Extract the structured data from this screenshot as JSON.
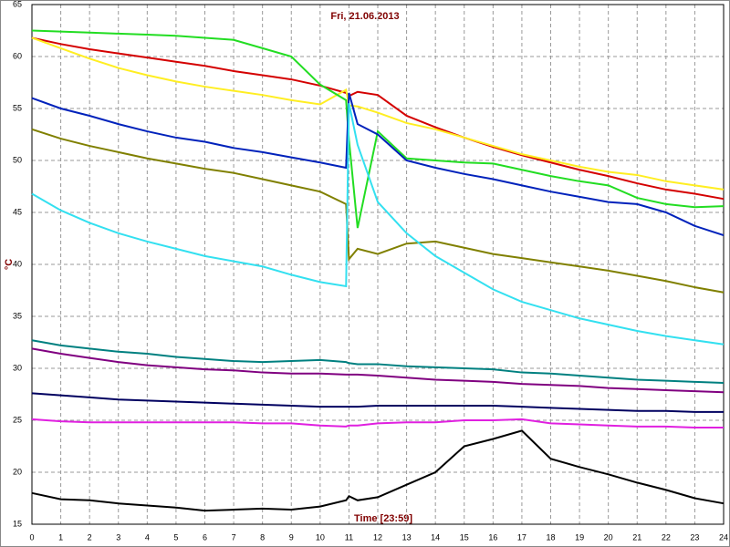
{
  "chart_data": {
    "type": "line",
    "title": "Fri, 21.06.2013",
    "y_label": "°C",
    "x_label": "Time [23:59]",
    "x": [
      0,
      1,
      2,
      3,
      4,
      5,
      6,
      7,
      8,
      9,
      10,
      10.9,
      11,
      11.3,
      12,
      13,
      14,
      15,
      16,
      17,
      18,
      19,
      20,
      21,
      22,
      23,
      24
    ],
    "xlim": [
      0,
      24
    ],
    "xticks": [
      0,
      1,
      2,
      3,
      4,
      5,
      6,
      7,
      8,
      9,
      10,
      11,
      12,
      13,
      14,
      15,
      16,
      17,
      18,
      19,
      20,
      21,
      22,
      23,
      24
    ],
    "ylim": [
      15,
      65
    ],
    "yticks": [
      15,
      20,
      25,
      30,
      35,
      40,
      45,
      50,
      55,
      60,
      65
    ],
    "grid": true,
    "series": [
      {
        "color": "#d40000",
        "values": [
          61.8,
          61.2,
          60.7,
          60.3,
          59.9,
          59.5,
          59.1,
          58.6,
          58.2,
          57.8,
          57.2,
          56.5,
          56.2,
          56.6,
          56.3,
          54.3,
          53.2,
          52.2,
          51.3,
          50.5,
          49.8,
          49.1,
          48.5,
          47.8,
          47.2,
          46.8,
          46.3
        ]
      },
      {
        "color": "#ffee22",
        "values": [
          61.8,
          60.8,
          59.8,
          58.9,
          58.2,
          57.6,
          57.1,
          56.7,
          56.3,
          55.8,
          55.4,
          56.8,
          55.3,
          55.2,
          54.6,
          53.6,
          53,
          52.2,
          51.4,
          50.6,
          50,
          49.4,
          48.9,
          48.6,
          48,
          47.6,
          47.2
        ]
      },
      {
        "color": "#22dd22",
        "values": [
          62.5,
          62.4,
          62.3,
          62.2,
          62.1,
          62,
          61.8,
          61.6,
          60.8,
          60,
          57.3,
          55.8,
          52,
          43.5,
          52.8,
          50.2,
          50,
          49.8,
          49.7,
          49.1,
          48.5,
          48,
          47.6,
          46.4,
          45.8,
          45.5,
          45.6
        ]
      },
      {
        "color": "#0022bb",
        "values": [
          56,
          55,
          54.3,
          53.5,
          52.8,
          52.2,
          51.8,
          51.2,
          50.8,
          50.3,
          49.8,
          49.3,
          56.5,
          53.5,
          52.5,
          50,
          49.3,
          48.7,
          48.2,
          47.6,
          47,
          46.5,
          46,
          45.8,
          45,
          43.7,
          42.8
        ]
      },
      {
        "color": "#808000",
        "values": [
          53,
          52.1,
          51.4,
          50.8,
          50.2,
          49.7,
          49.2,
          48.8,
          48.2,
          47.6,
          47,
          45.8,
          40.5,
          41.5,
          41,
          42,
          42.2,
          41.6,
          41,
          40.6,
          40.2,
          39.8,
          39.4,
          38.9,
          38.4,
          37.8,
          37.3
        ]
      },
      {
        "color": "#33e0f0",
        "values": [
          46.8,
          45.2,
          44,
          43,
          42.2,
          41.5,
          40.8,
          40.3,
          39.8,
          39,
          38.3,
          37.9,
          55.5,
          51.5,
          46,
          43,
          40.8,
          39.2,
          37.6,
          36.4,
          35.6,
          34.8,
          34.2,
          33.6,
          33.1,
          32.7,
          32.3
        ]
      },
      {
        "color": "#008080",
        "values": [
          32.7,
          32.2,
          31.9,
          31.6,
          31.4,
          31.1,
          30.9,
          30.7,
          30.6,
          30.7,
          30.8,
          30.6,
          30.5,
          30.4,
          30.4,
          30.2,
          30.1,
          30,
          29.9,
          29.6,
          29.5,
          29.3,
          29.1,
          28.9,
          28.8,
          28.7,
          28.6
        ]
      },
      {
        "color": "#800080",
        "values": [
          31.9,
          31.4,
          31,
          30.6,
          30.3,
          30.1,
          29.9,
          29.8,
          29.6,
          29.5,
          29.5,
          29.4,
          29.4,
          29.4,
          29.3,
          29.1,
          28.9,
          28.8,
          28.7,
          28.5,
          28.4,
          28.3,
          28.1,
          28,
          27.9,
          27.8,
          27.7
        ]
      },
      {
        "color": "#000060",
        "values": [
          27.6,
          27.4,
          27.2,
          27,
          26.9,
          26.8,
          26.7,
          26.6,
          26.5,
          26.4,
          26.3,
          26.3,
          26.3,
          26.3,
          26.4,
          26.4,
          26.4,
          26.4,
          26.4,
          26.3,
          26.2,
          26.1,
          26,
          25.9,
          25.9,
          25.8,
          25.8
        ]
      },
      {
        "color": "#e020e0",
        "values": [
          25.1,
          24.9,
          24.8,
          24.8,
          24.8,
          24.8,
          24.8,
          24.8,
          24.7,
          24.7,
          24.5,
          24.4,
          24.5,
          24.5,
          24.7,
          24.8,
          24.8,
          25,
          25,
          25.1,
          24.7,
          24.6,
          24.5,
          24.4,
          24.4,
          24.3,
          24.3
        ]
      },
      {
        "color": "#000000",
        "values": [
          18,
          17.4,
          17.3,
          17,
          16.8,
          16.6,
          16.3,
          16.4,
          16.5,
          16.4,
          16.7,
          17.3,
          17.7,
          17.3,
          17.6,
          18.8,
          20,
          22.5,
          23.2,
          24,
          21.3,
          20.5,
          19.8,
          19,
          18.3,
          17.5,
          17
        ]
      }
    ]
  }
}
